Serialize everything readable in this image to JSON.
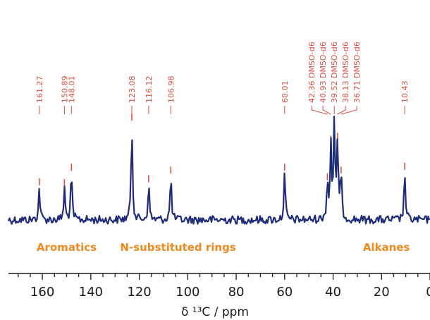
{
  "chart_data": {
    "type": "line",
    "xlabel": "δ ¹³C / ppm",
    "xlim": [
      174,
      0
    ],
    "x_reversed": true,
    "x_ticks": [
      160,
      140,
      120,
      100,
      80,
      60,
      40,
      20,
      0
    ],
    "x_minor_step": 5,
    "grid": false,
    "colors": {
      "spectrum": "#1f2c7a",
      "peak_marker": "#d9503f",
      "peak_label": "#d9503f",
      "region_label": "#f08a1e",
      "axis": "#1a1a1a"
    },
    "peaks": [
      {
        "ppm": 161.27,
        "label": "161.27",
        "height": 0.33
      },
      {
        "ppm": 150.89,
        "label": "150.89",
        "height": 0.32
      },
      {
        "ppm": 148.01,
        "label": "148.01",
        "height": 0.48
      },
      {
        "ppm": 123.08,
        "label": "123.08",
        "height": 1.0
      },
      {
        "ppm": 116.12,
        "label": "116.12",
        "height": 0.36
      },
      {
        "ppm": 106.98,
        "label": "106.98",
        "height": 0.45
      },
      {
        "ppm": 60.01,
        "label": "60.01",
        "height": 0.48
      },
      {
        "ppm": 42.36,
        "label": "42.36 DMSO-d6",
        "height": 0.38
      },
      {
        "ppm": 40.93,
        "label": "40.93 DMSO-d6",
        "height": 0.77
      },
      {
        "ppm": 39.52,
        "label": "39.52 DMSO-d6",
        "height": 0.97
      },
      {
        "ppm": 38.13,
        "label": "38.13 DMSO-d6",
        "height": 0.8
      },
      {
        "ppm": 36.71,
        "label": "36.71 DMSO-d6",
        "height": 0.45
      },
      {
        "ppm": 10.43,
        "label": "10.43",
        "height": 0.49
      }
    ],
    "annotations": [
      {
        "text": "Aromatics",
        "ppm": 150
      },
      {
        "text": "N-substituted rings",
        "ppm": 104
      },
      {
        "text": "Alkanes",
        "ppm": 18
      }
    ]
  }
}
